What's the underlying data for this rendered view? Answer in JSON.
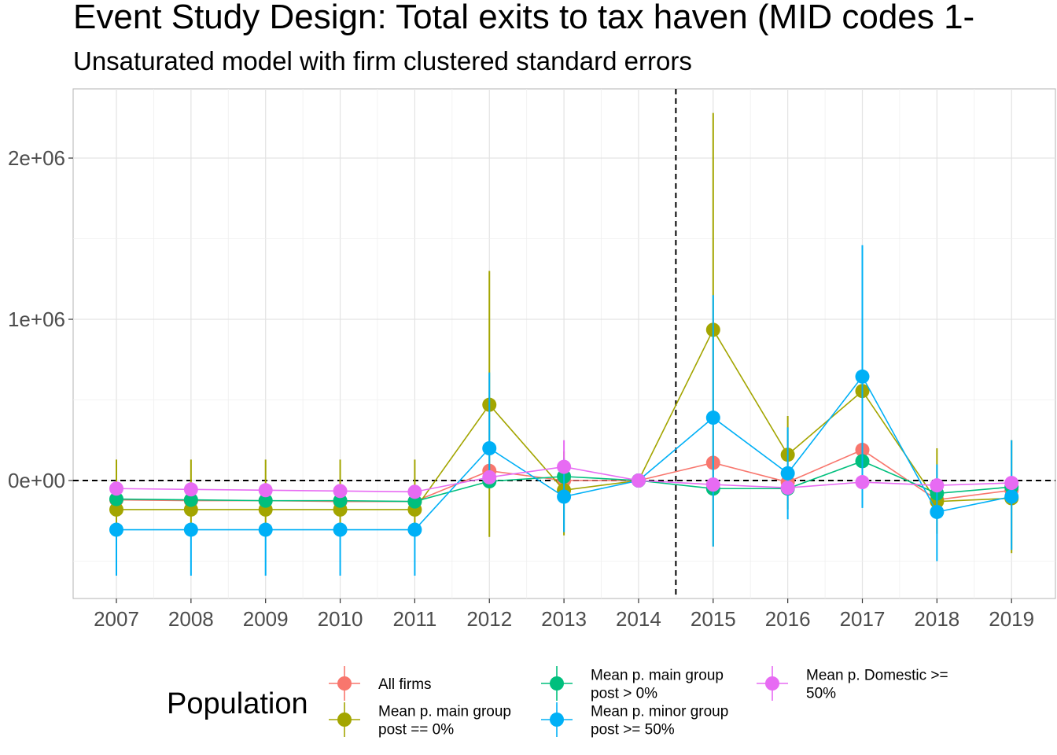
{
  "chart_data": {
    "type": "line",
    "title": "Event Study Design: Total exits to tax haven (MID codes 1-",
    "subtitle": "Unsaturated model with firm clustered standard errors",
    "xlabel": "",
    "ylabel": "",
    "x": [
      2007,
      2008,
      2009,
      2010,
      2011,
      2012,
      2013,
      2014,
      2015,
      2016,
      2017,
      2018,
      2019
    ],
    "x_tick_labels": [
      "2007",
      "2008",
      "2009",
      "2010",
      "2011",
      "2012",
      "2013",
      "2014",
      "2015",
      "2016",
      "2017",
      "2018",
      "2019"
    ],
    "y_ticks": [
      0,
      1000000,
      2000000
    ],
    "y_tick_labels": [
      "0e+00",
      "1e+06",
      "2e+06"
    ],
    "ylim": [
      -740000,
      2420000
    ],
    "grid": true,
    "reference_lines": {
      "vertical_x": 2014.5,
      "horizontal_y": 0,
      "style": "dashed"
    },
    "legend": {
      "title": "Population",
      "position": "bottom"
    },
    "series": [
      {
        "name": "All firms",
        "color": "#F8766D",
        "values": [
          -120000,
          -125000,
          -125000,
          -130000,
          -130000,
          60000,
          0,
          0,
          110000,
          -10000,
          190000,
          -120000,
          -60000
        ],
        "lower": [
          -120000,
          -125000,
          -125000,
          -130000,
          -130000,
          60000,
          0,
          0,
          110000,
          -10000,
          190000,
          -120000,
          -60000
        ],
        "upper": [
          -120000,
          -125000,
          -125000,
          -130000,
          -130000,
          60000,
          0,
          0,
          110000,
          -10000,
          190000,
          -120000,
          -60000
        ]
      },
      {
        "name": "Mean p. main group post == 0%",
        "color": "#A3A500",
        "values": [
          -180000,
          -180000,
          -180000,
          -180000,
          -180000,
          470000,
          -60000,
          0,
          935000,
          160000,
          555000,
          -130000,
          -110000
        ],
        "lower": [
          -280000,
          -280000,
          -280000,
          -280000,
          -280000,
          -350000,
          -340000,
          0,
          -410000,
          -180000,
          -100000,
          -330000,
          -450000
        ],
        "upper": [
          130000,
          130000,
          130000,
          130000,
          130000,
          1300000,
          180000,
          0,
          2280000,
          400000,
          1200000,
          200000,
          250000
        ]
      },
      {
        "name": "Mean p. main group post > 0%",
        "color": "#00BF7D",
        "values": [
          -115000,
          -120000,
          -125000,
          -125000,
          -130000,
          -5000,
          25000,
          0,
          -50000,
          -50000,
          120000,
          -80000,
          -40000
        ],
        "lower": [
          -115000,
          -120000,
          -125000,
          -125000,
          -130000,
          -5000,
          25000,
          0,
          -50000,
          -50000,
          120000,
          -80000,
          -40000
        ],
        "upper": [
          -115000,
          -120000,
          -125000,
          -125000,
          -130000,
          -5000,
          25000,
          0,
          -50000,
          -50000,
          120000,
          -80000,
          -40000
        ]
      },
      {
        "name": "Mean p. minor group post >= 50%",
        "color": "#00B0F6",
        "values": [
          -305000,
          -305000,
          -305000,
          -305000,
          -305000,
          200000,
          -100000,
          0,
          390000,
          45000,
          645000,
          -195000,
          -100000
        ],
        "lower": [
          -590000,
          -590000,
          -590000,
          -590000,
          -590000,
          -5000,
          -320000,
          0,
          -410000,
          -240000,
          -170000,
          -500000,
          -430000
        ],
        "upper": [
          -305000,
          -305000,
          -305000,
          -305000,
          -305000,
          670000,
          140000,
          0,
          1150000,
          330000,
          1460000,
          100000,
          250000
        ]
      },
      {
        "name": "Mean p. Domestic >= 50%",
        "color": "#E76BF3",
        "values": [
          -50000,
          -55000,
          -60000,
          -65000,
          -70000,
          20000,
          85000,
          0,
          -25000,
          -45000,
          -10000,
          -30000,
          -15000
        ],
        "lower": [
          -50000,
          -55000,
          -60000,
          -65000,
          -70000,
          20000,
          85000,
          0,
          -25000,
          -45000,
          -10000,
          -30000,
          -15000
        ],
        "upper": [
          -50000,
          -55000,
          -60000,
          -65000,
          -70000,
          20000,
          250000,
          0,
          -25000,
          -45000,
          -10000,
          -30000,
          -15000
        ]
      }
    ]
  }
}
